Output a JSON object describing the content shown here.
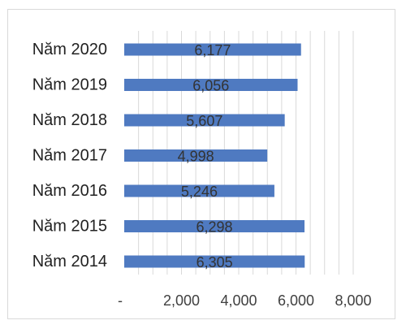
{
  "chart_data": {
    "type": "bar",
    "orientation": "horizontal",
    "title": "",
    "xlabel": "",
    "ylabel": "",
    "categories": [
      "Năm 2020",
      "Năm 2019",
      "Năm 2018",
      "Năm 2017",
      "Năm 2016",
      "Năm 2015",
      "Năm 2014"
    ],
    "values": [
      6177,
      6056,
      5607,
      4998,
      5246,
      6298,
      6305
    ],
    "data_labels": [
      "6,177",
      "6,056",
      "5,607",
      "4,998",
      "5,246",
      "6,298",
      "6,305"
    ],
    "xlim": [
      0,
      8000
    ],
    "x_ticks": [
      0,
      2000,
      4000,
      6000,
      8000
    ],
    "x_tick_labels": [
      "-",
      "2,000",
      "4,000",
      "6,000",
      "8,000"
    ],
    "grid": true,
    "legend": "none",
    "colors": {
      "bar": "#4f7ac1",
      "grid": "#d9d9d9",
      "border": "#d9d9d9"
    }
  }
}
